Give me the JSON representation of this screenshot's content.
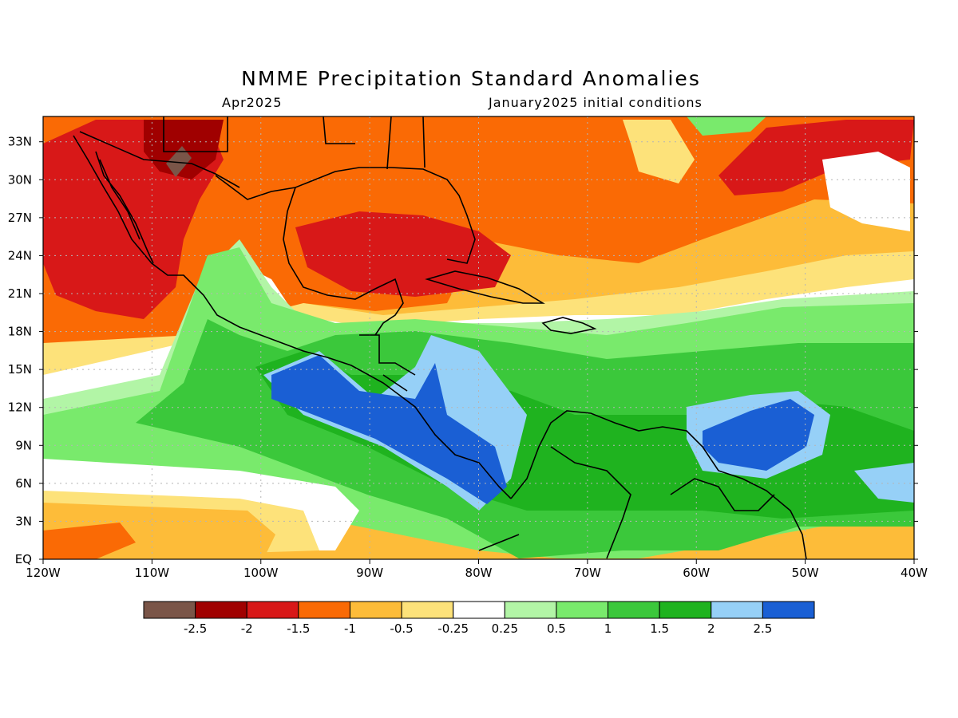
{
  "title": "NMME Precipitation Standard Anomalies",
  "subtitle_left": "Apr2025",
  "subtitle_right": "January2025 initial conditions",
  "map": {
    "lon_range": [
      -120,
      -40
    ],
    "lat_range": [
      0,
      35
    ],
    "lon_ticks": [
      {
        "value": -120,
        "label": "120W"
      },
      {
        "value": -110,
        "label": "110W"
      },
      {
        "value": -100,
        "label": "100W"
      },
      {
        "value": -90,
        "label": "90W"
      },
      {
        "value": -80,
        "label": "80W"
      },
      {
        "value": -70,
        "label": "70W"
      },
      {
        "value": -60,
        "label": "60W"
      },
      {
        "value": -50,
        "label": "50W"
      },
      {
        "value": -40,
        "label": "40W"
      }
    ],
    "lat_ticks": [
      {
        "value": 0,
        "label": "EQ"
      },
      {
        "value": 3,
        "label": "3N"
      },
      {
        "value": 6,
        "label": "6N"
      },
      {
        "value": 9,
        "label": "9N"
      },
      {
        "value": 12,
        "label": "12N"
      },
      {
        "value": 15,
        "label": "15N"
      },
      {
        "value": 18,
        "label": "18N"
      },
      {
        "value": 21,
        "label": "21N"
      },
      {
        "value": 24,
        "label": "24N"
      },
      {
        "value": 27,
        "label": "27N"
      },
      {
        "value": 30,
        "label": "30N"
      },
      {
        "value": 33,
        "label": "33N"
      }
    ]
  },
  "colorbar": {
    "colors": [
      "#7a5548",
      "#a00000",
      "#d81818",
      "#fa6a05",
      "#fdbc39",
      "#fde27a",
      "#ffffff",
      "#b2f5a6",
      "#79ea6c",
      "#3bc83b",
      "#1fb31f",
      "#96d0f7",
      "#1a5fd4"
    ],
    "labels": [
      "-2.5",
      "-2",
      "-1.5",
      "-1",
      "-0.5",
      "-0.25",
      "0.25",
      "0.5",
      "1",
      "1.5",
      "2",
      "2.5"
    ]
  }
}
